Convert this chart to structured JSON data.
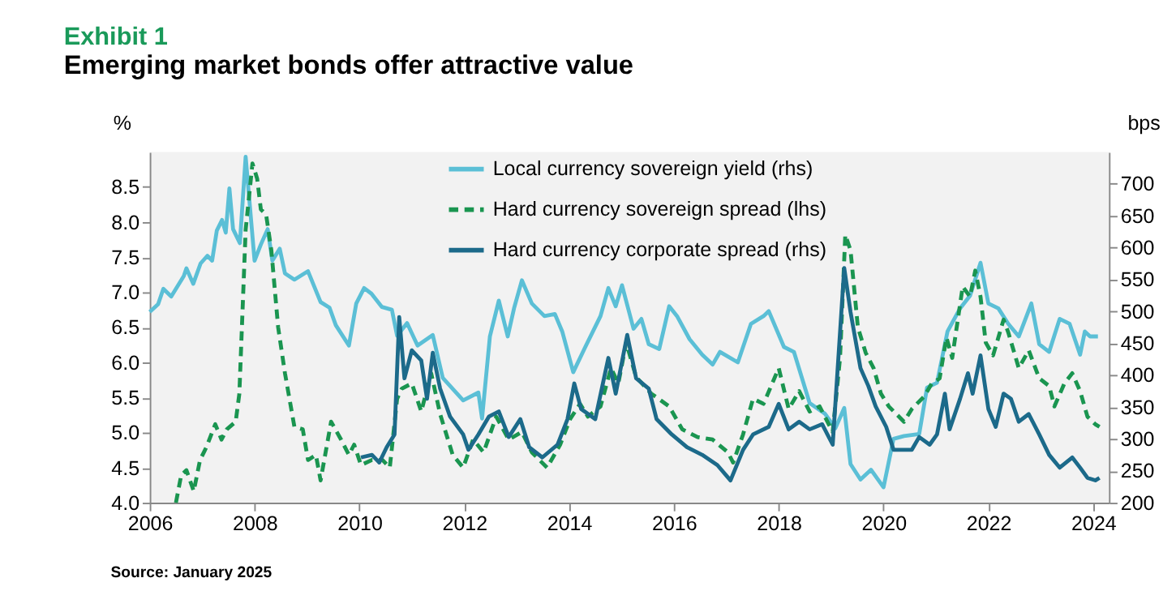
{
  "chart_data": {
    "type": "line",
    "title": "Exhibit 1",
    "subtitle": "Emerging market bonds offer attractive value",
    "ylabel": "%",
    "y2label": "bps",
    "xlim": [
      2006,
      2024.3
    ],
    "xticks": [
      2006,
      2008,
      2010,
      2012,
      2014,
      2016,
      2018,
      2020,
      2022,
      2024
    ],
    "ylim": [
      4.0,
      9.0
    ],
    "yticks": [
      {
        "value": 4,
        "label": "4.0"
      },
      4.5,
      {
        "value": 5,
        "label": "5.0"
      },
      5.5,
      {
        "value": 6,
        "label": "6.0"
      },
      6.5,
      {
        "value": 7,
        "label": "7.0"
      },
      7.5,
      {
        "value": 8,
        "label": "8.0"
      },
      8.5
    ],
    "y2lim": [
      200,
      750
    ],
    "y2ticks": [
      200,
      250,
      300,
      350,
      400,
      450,
      500,
      550,
      600,
      650,
      700
    ],
    "grid": false,
    "legend": "top",
    "marker": "none",
    "annotations": [
      "Source: January 2025"
    ],
    "series": [
      {
        "name": "Local currency sovereign yield (rhs)",
        "color": "#5bbfd6",
        "line_style": "solid",
        "x": [
          2006.0,
          2006.16,
          2006.26,
          2006.41,
          2006.65,
          2006.7,
          2006.83,
          2006.97,
          2007.1,
          2007.19,
          2007.28,
          2007.38,
          2007.45,
          2007.52,
          2007.59,
          2007.72,
          2007.83,
          2008.0,
          2008.12,
          2008.25,
          2008.34,
          2008.48,
          2008.58,
          2008.76,
          2009.02,
          2009.26,
          2009.43,
          2009.55,
          2009.8,
          2009.94,
          2010.09,
          2010.23,
          2010.43,
          2010.62,
          2010.72,
          2010.91,
          2011.11,
          2011.4,
          2011.59,
          2011.98,
          2012.27,
          2012.34,
          2012.49,
          2012.66,
          2012.83,
          2012.95,
          2013.1,
          2013.29,
          2013.53,
          2013.73,
          2013.87,
          2014.08,
          2014.31,
          2014.6,
          2014.75,
          2014.89,
          2015.01,
          2015.23,
          2015.38,
          2015.52,
          2015.72,
          2015.91,
          2016.06,
          2016.3,
          2016.54,
          2016.74,
          2016.88,
          2017.22,
          2017.47,
          2017.71,
          2017.81,
          2018.1,
          2018.29,
          2018.59,
          2018.88,
          2019.08,
          2019.25,
          2019.37,
          2019.56,
          2019.76,
          2020.0,
          2020.19,
          2020.39,
          2020.68,
          2020.83,
          2021.02,
          2021.22,
          2021.46,
          2021.65,
          2021.85,
          2022.0,
          2022.19,
          2022.38,
          2022.58,
          2022.82,
          2022.97,
          2023.16,
          2023.36,
          2023.55,
          2023.75,
          2023.84,
          2023.94,
          2024.09
        ],
        "values": [
          6.72,
          6.83,
          7.05,
          6.94,
          7.23,
          7.34,
          7.12,
          7.41,
          7.52,
          7.45,
          7.88,
          8.03,
          7.85,
          8.48,
          7.9,
          7.7,
          8.93,
          7.45,
          7.68,
          7.9,
          7.45,
          7.62,
          7.27,
          7.18,
          7.3,
          6.86,
          6.78,
          6.53,
          6.24,
          6.84,
          7.06,
          6.98,
          6.79,
          6.75,
          6.38,
          6.56,
          6.24,
          6.39,
          5.78,
          5.46,
          5.57,
          5.2,
          6.37,
          6.88,
          6.37,
          6.77,
          7.17,
          6.84,
          6.66,
          6.69,
          6.44,
          5.86,
          6.22,
          6.66,
          7.06,
          6.8,
          7.1,
          6.48,
          6.62,
          6.26,
          6.19,
          6.8,
          6.66,
          6.33,
          6.11,
          5.97,
          6.15,
          6.0,
          6.55,
          6.66,
          6.73,
          6.22,
          6.15,
          5.42,
          5.27,
          5.06,
          5.35,
          4.55,
          4.33,
          4.47,
          4.22,
          4.91,
          4.95,
          4.98,
          5.64,
          5.71,
          6.44,
          6.77,
          6.95,
          7.42,
          6.84,
          6.77,
          6.55,
          6.37,
          6.84,
          6.26,
          6.15,
          6.62,
          6.55,
          6.11,
          6.44,
          6.37,
          6.37
        ]
      },
      {
        "name": "Hard currency sovereign spread (lhs)",
        "color": "#1a9550",
        "line_style": "dashed",
        "axis": "y2",
        "x": [
          2006.5,
          2006.6,
          2006.7,
          2006.84,
          2006.96,
          2007.08,
          2007.25,
          2007.37,
          2007.47,
          2007.64,
          2007.71,
          2007.83,
          2007.96,
          2008.05,
          2008.12,
          2008.22,
          2008.32,
          2008.45,
          2008.58,
          2008.76,
          2008.92,
          2009.02,
          2009.17,
          2009.26,
          2009.46,
          2009.65,
          2009.8,
          2009.9,
          2010.03,
          2010.24,
          2010.44,
          2010.58,
          2010.72,
          2010.81,
          2011.0,
          2011.18,
          2011.37,
          2011.54,
          2011.78,
          2011.98,
          2012.17,
          2012.37,
          2012.61,
          2012.85,
          2013.1,
          2013.29,
          2013.58,
          2013.83,
          2014.02,
          2014.21,
          2014.36,
          2014.6,
          2014.8,
          2014.94,
          2015.09,
          2015.28,
          2015.57,
          2015.91,
          2016.16,
          2016.45,
          2016.74,
          2017.03,
          2017.13,
          2017.32,
          2017.51,
          2017.71,
          2018.0,
          2018.19,
          2018.39,
          2018.59,
          2018.78,
          2019.03,
          2019.17,
          2019.27,
          2019.37,
          2019.51,
          2019.66,
          2019.81,
          2019.95,
          2020.1,
          2020.39,
          2020.54,
          2020.78,
          2020.92,
          2021.07,
          2021.2,
          2021.31,
          2021.51,
          2021.65,
          2021.75,
          2021.85,
          2021.95,
          2022.09,
          2022.29,
          2022.38,
          2022.58,
          2022.77,
          2022.97,
          2023.16,
          2023.26,
          2023.45,
          2023.6,
          2023.75,
          2023.89,
          2024.04,
          2024.12
        ],
        "values": [
          200,
          243,
          251,
          218,
          267,
          287,
          323,
          299,
          315,
          327,
          371,
          628,
          732,
          708,
          660,
          652,
          596,
          475,
          403,
          319,
          315,
          267,
          275,
          235,
          327,
          299,
          275,
          291,
          259,
          267,
          267,
          255,
          363,
          379,
          387,
          343,
          403,
          339,
          275,
          255,
          299,
          279,
          335,
          299,
          311,
          279,
          255,
          291,
          331,
          355,
          335,
          351,
          411,
          387,
          451,
          397,
          371,
          351,
          315,
          303,
          299,
          279,
          263,
          307,
          363,
          355,
          411,
          347,
          375,
          343,
          351,
          311,
          427,
          620,
          596,
          475,
          435,
          411,
          371,
          351,
          327,
          347,
          367,
          387,
          395,
          459,
          427,
          539,
          523,
          564,
          523,
          451,
          431,
          487,
          467,
          411,
          439,
          395,
          383,
          351,
          387,
          403,
          375,
          335,
          323,
          319
        ]
      },
      {
        "name": "Hard currency corporate spread (rhs)",
        "color": "#1c6a8a",
        "line_style": "solid",
        "axis": "y2",
        "x": [
          2010.03,
          2010.24,
          2010.38,
          2010.52,
          2010.67,
          2010.76,
          2010.86,
          2011.0,
          2011.18,
          2011.29,
          2011.4,
          2011.54,
          2011.73,
          2011.98,
          2012.08,
          2012.27,
          2012.47,
          2012.66,
          2012.85,
          2013.07,
          2013.24,
          2013.49,
          2013.78,
          2013.97,
          2014.1,
          2014.23,
          2014.5,
          2014.75,
          2014.89,
          2015.11,
          2015.28,
          2015.52,
          2015.67,
          2015.96,
          2016.25,
          2016.54,
          2016.83,
          2017.08,
          2017.32,
          2017.51,
          2017.81,
          2018.0,
          2018.19,
          2018.39,
          2018.59,
          2018.83,
          2019.03,
          2019.17,
          2019.25,
          2019.37,
          2019.56,
          2019.71,
          2019.85,
          2020.05,
          2020.19,
          2020.54,
          2020.68,
          2020.88,
          2021.02,
          2021.17,
          2021.26,
          2021.46,
          2021.61,
          2021.7,
          2021.85,
          2022.0,
          2022.14,
          2022.29,
          2022.43,
          2022.58,
          2022.77,
          2022.97,
          2023.16,
          2023.36,
          2023.6,
          2023.75,
          2023.89,
          2024.04,
          2024.12
        ],
        "values": [
          271,
          275,
          263,
          287,
          307,
          491,
          395,
          439,
          423,
          363,
          435,
          379,
          335,
          307,
          283,
          307,
          335,
          343,
          303,
          331,
          287,
          271,
          291,
          331,
          387,
          347,
          331,
          427,
          371,
          463,
          395,
          379,
          331,
          307,
          287,
          275,
          259,
          235,
          283,
          307,
          319,
          355,
          315,
          327,
          315,
          323,
          291,
          467,
          568,
          499,
          411,
          383,
          351,
          319,
          283,
          283,
          303,
          291,
          307,
          371,
          315,
          363,
          403,
          371,
          431,
          347,
          319,
          371,
          363,
          327,
          339,
          307,
          275,
          255,
          271,
          255,
          239,
          235,
          239
        ]
      }
    ]
  }
}
